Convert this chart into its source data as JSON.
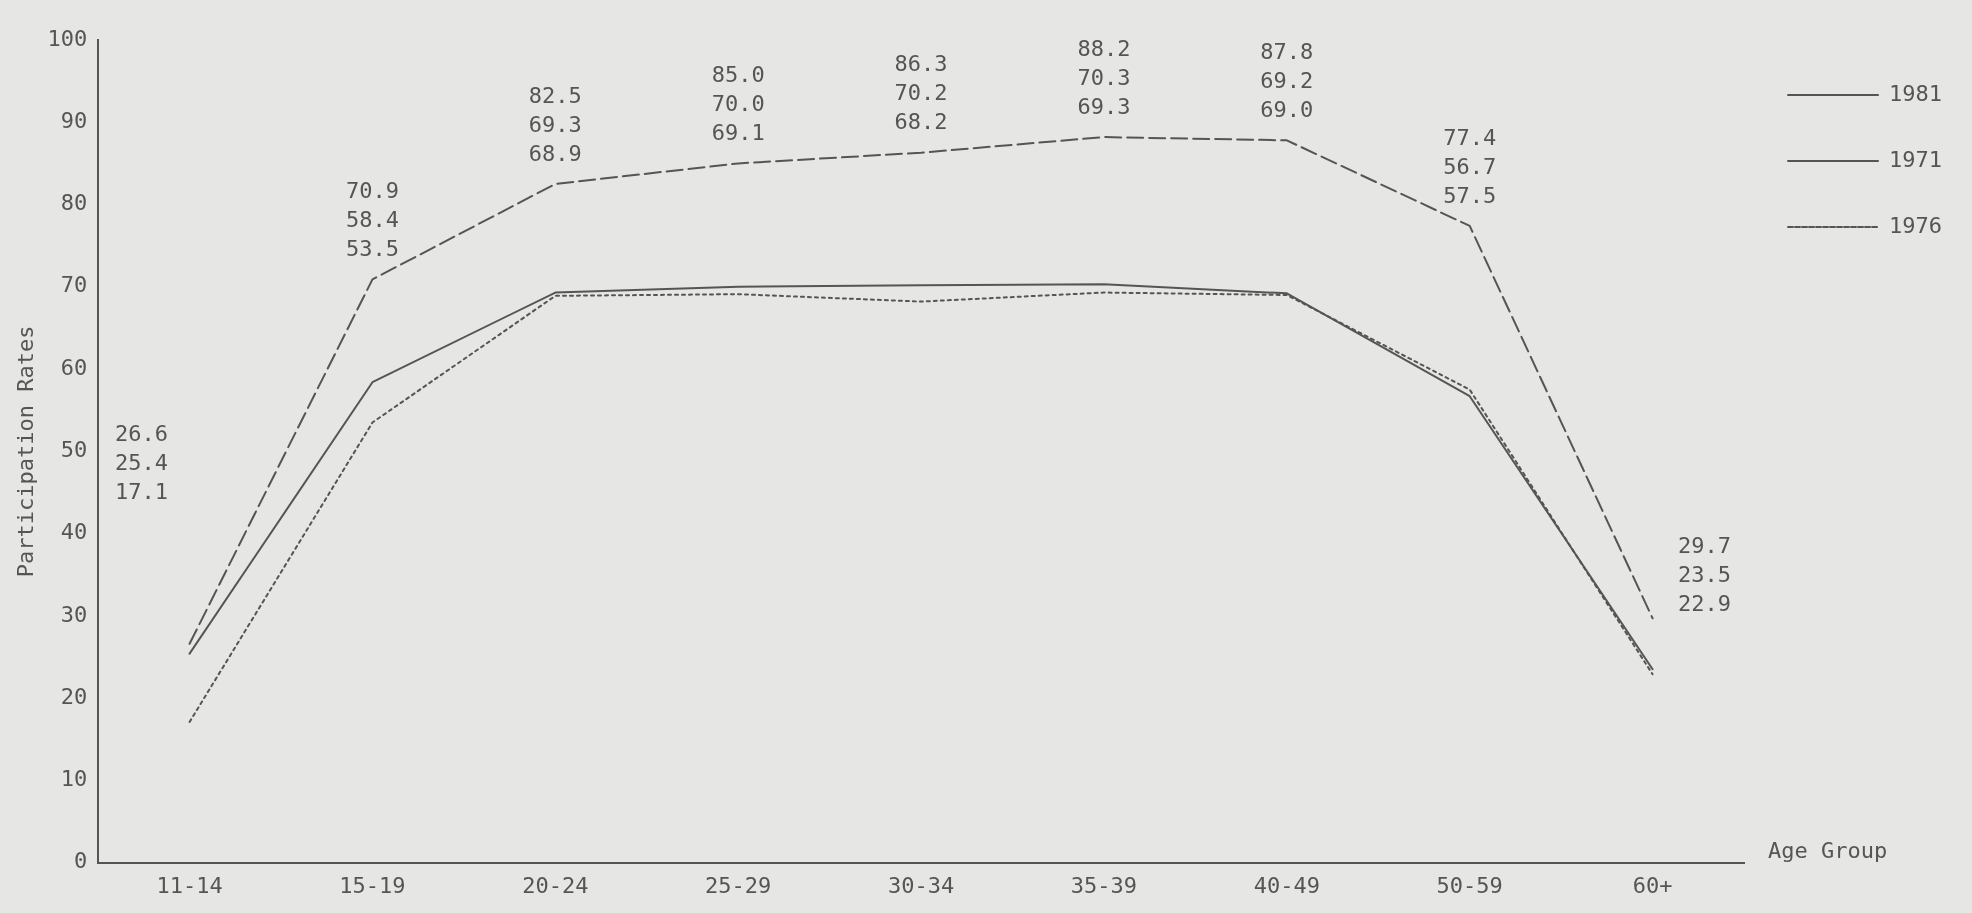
{
  "chart_data": {
    "type": "line",
    "xlabel": "Age Group",
    "ylabel": "Participation Rates",
    "categories": [
      "11-14",
      "15-19",
      "20-24",
      "25-29",
      "30-34",
      "35-39",
      "40-49",
      "50-59",
      "60+"
    ],
    "series": [
      {
        "name": "1981",
        "color": "#555555",
        "line_style": "dashed",
        "values": [
          26.6,
          70.9,
          82.5,
          85.0,
          86.3,
          88.2,
          87.8,
          77.4,
          29.7
        ]
      },
      {
        "name": "1971",
        "color": "#555555",
        "line_style": "solid",
        "values": [
          25.4,
          58.4,
          69.3,
          70.0,
          70.2,
          70.3,
          69.2,
          56.7,
          23.5
        ]
      },
      {
        "name": "1976",
        "color": "#555555",
        "line_style": "dotted",
        "values": [
          17.1,
          53.5,
          68.9,
          69.1,
          68.2,
          69.3,
          69.0,
          57.5,
          22.9
        ]
      }
    ],
    "ylim": [
      0,
      100
    ],
    "yticks": [
      0,
      10,
      20,
      30,
      40,
      50,
      60,
      70,
      80,
      90,
      100
    ],
    "annotations": [
      "26.6",
      "25.4",
      "17.1",
      "70.9",
      "58.4",
      "53.5",
      "82.5",
      "69.3",
      "68.9",
      "85.0",
      "70.0",
      "69.1",
      "86.3",
      "70.2",
      "68.2",
      "88.2",
      "70.3",
      "69.3",
      "87.8",
      "69.2",
      "69.0",
      "77.4",
      "56.7",
      "57.5",
      "29.7",
      "23.5",
      "22.9"
    ],
    "grid": false,
    "legend": "right",
    "marker": "none"
  }
}
